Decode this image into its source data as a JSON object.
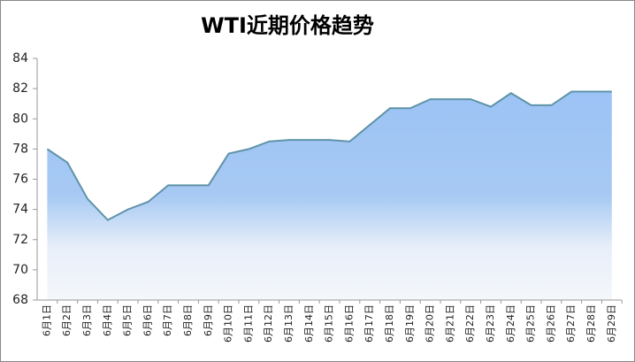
{
  "chart_data": {
    "type": "area",
    "title": "WTI近期价格趋势",
    "categories": [
      "6月1日",
      "6月2日",
      "6月3日",
      "6月4日",
      "6月5日",
      "6月6日",
      "6月7日",
      "6月8日",
      "6月9日",
      "6月10日",
      "6月11日",
      "6月12日",
      "6月13日",
      "6月14日",
      "6月15日",
      "6月16日",
      "6月17日",
      "6月18日",
      "6月19日",
      "6月20日",
      "6月21日",
      "6月22日",
      "6月23日",
      "6月24日",
      "6月25日",
      "6月26日",
      "6月27日",
      "6月28日",
      "6月29日"
    ],
    "values": [
      78.0,
      77.1,
      74.7,
      73.3,
      74.0,
      74.5,
      75.6,
      75.6,
      75.6,
      77.7,
      78.0,
      78.5,
      78.6,
      78.6,
      78.6,
      78.5,
      79.6,
      80.7,
      80.7,
      81.3,
      81.3,
      81.3,
      80.8,
      81.7,
      80.9,
      80.9,
      81.8,
      81.8,
      81.8
    ],
    "color": "#5f93a8",
    "ylim": [
      68,
      84
    ],
    "yticks": [
      68,
      70,
      72,
      74,
      76,
      78,
      80,
      82,
      84
    ]
  }
}
